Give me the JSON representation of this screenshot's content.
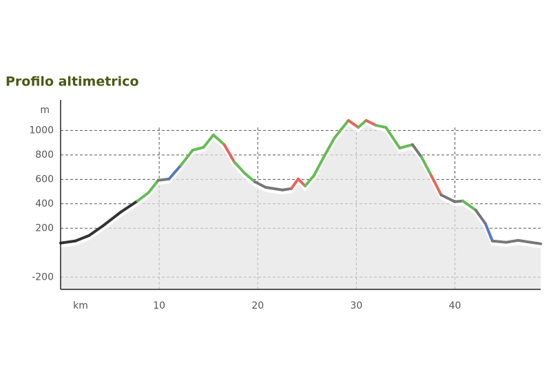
{
  "chart_data": {
    "type": "line",
    "title": "Profilo altimetrico",
    "y_label": "m",
    "x_label": "km",
    "x": [
      0,
      1.5,
      2.9,
      4.3,
      6.1,
      7.8,
      8.9,
      9.9,
      11.0,
      12.2,
      13.4,
      14.5,
      15.5,
      16.6,
      17.6,
      18.7,
      19.7,
      20.8,
      22.5,
      23.4,
      24.1,
      24.8,
      25.7,
      26.7,
      27.8,
      29.2,
      30.2,
      31.0,
      32.0,
      33.0,
      34.4,
      35.7,
      36.6,
      37.6,
      38.6,
      40.0,
      40.8,
      42.1,
      43.1,
      43.8,
      45.2,
      46.4,
      47.7,
      48.7
    ],
    "values": [
      79,
      96,
      141,
      220,
      332,
      423,
      490,
      592,
      603,
      715,
      839,
      862,
      963,
      884,
      744,
      648,
      580,
      535,
      513,
      524,
      603,
      546,
      631,
      783,
      941,
      1082,
      1025,
      1082,
      1042,
      1025,
      856,
      884,
      783,
      631,
      473,
      417,
      423,
      349,
      237,
      96,
      85,
      101,
      85,
      73
    ],
    "colors": [
      "#333333",
      "#333333",
      "#333333",
      "#333333",
      "#333333",
      "#66bb55",
      "#66bb55",
      "#777777",
      "#5577cc",
      "#66bb55",
      "#66bb55",
      "#66bb55",
      "#66bb55",
      "#e8645a",
      "#66bb55",
      "#66bb55",
      "#777777",
      "#777777",
      "#777777",
      "#e8645a",
      "#e8645a",
      "#66bb55",
      "#66bb55",
      "#66bb55",
      "#66bb55",
      "#e8645a",
      "#66bb55",
      "#e8645a",
      "#66bb55",
      "#66bb55",
      "#66bb55",
      "#777777",
      "#66bb55",
      "#e8645a",
      "#777777",
      "#777777",
      "#66bb55",
      "#777777",
      "#5577cc",
      "#777777",
      "#777777",
      "#777777",
      "#777777",
      "#777777"
    ],
    "xlim": [
      0,
      48.7
    ],
    "ylim": [
      -300,
      1250
    ],
    "xticks": [
      10,
      20,
      30,
      40
    ],
    "yticks": [
      -200,
      200,
      400,
      600,
      800,
      1000
    ],
    "grid": true
  }
}
